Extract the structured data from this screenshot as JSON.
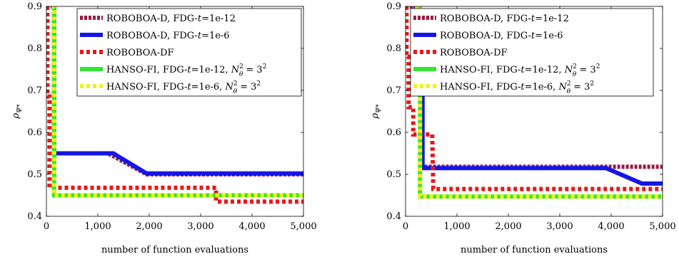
{
  "chart_data": [
    {
      "type": "line",
      "xlabel": "number of function evaluations",
      "ylabel": "ρΨ*",
      "xlim": [
        0,
        5000
      ],
      "ylim": [
        0.4,
        0.9
      ],
      "xticks": [
        "0",
        "1,000",
        "2,000",
        "3,000",
        "4,000",
        "5,000"
      ],
      "yticks": [
        "0.4",
        "0.5",
        "0.6",
        "0.7",
        "0.8",
        "0.9"
      ],
      "legend_position": "top-right",
      "series": [
        {
          "name": "ROBOBOA-D, FDG-t=1e-12",
          "color": "#9b1b4a",
          "dash": "dense-dash",
          "x": [
            0,
            150,
            150,
            1200,
            1950,
            5000
          ],
          "y": [
            0.9,
            0.9,
            0.55,
            0.55,
            0.5,
            0.5
          ]
        },
        {
          "name": "ROBOBOA-D, FDG-t=1e-6",
          "color": "#1515e6",
          "dash": "solid",
          "x": [
            100,
            150,
            150,
            1300,
            1950,
            5000
          ],
          "y": [
            0.9,
            0.9,
            0.55,
            0.55,
            0.502,
            0.502
          ]
        },
        {
          "name": "ROBOBOA-DF",
          "color": "#e61919",
          "dash": "dotted",
          "x": [
            20,
            20,
            60,
            60,
            3300,
            3300,
            5000
          ],
          "y": [
            0.9,
            0.685,
            0.685,
            0.468,
            0.468,
            0.435,
            0.435
          ]
        },
        {
          "name": "HANSO-FI, FDG-t=1e-12, N²θ = 3²",
          "color": "#33e633",
          "dash": "solid",
          "x": [
            100,
            150,
            150,
            5000
          ],
          "y": [
            0.9,
            0.9,
            0.45,
            0.45
          ]
        },
        {
          "name": "HANSO-FI, FDG-t=1e-6, N²θ = 3²",
          "color": "#f2f21a",
          "dash": "dotted",
          "x": [
            100,
            150,
            150,
            5000
          ],
          "y": [
            0.9,
            0.9,
            0.45,
            0.45
          ]
        }
      ]
    },
    {
      "type": "line",
      "xlabel": "number of function evaluations",
      "ylabel": "ρΨ*",
      "xlim": [
        0,
        5000
      ],
      "ylim": [
        0.4,
        0.9
      ],
      "xticks": [
        "0",
        "1,000",
        "2,000",
        "3,000",
        "4,000",
        "5,000"
      ],
      "yticks": [
        "0.4",
        "0.5",
        "0.6",
        "0.7",
        "0.8",
        "0.9"
      ],
      "legend_position": "top-right",
      "series": [
        {
          "name": "ROBOBOA-D, FDG-t=1e-12",
          "color": "#9b1b4a",
          "dash": "dense-dash",
          "x": [
            0,
            250,
            250,
            320,
            320,
            5000
          ],
          "y": [
            0.9,
            0.9,
            0.72,
            0.72,
            0.518,
            0.518
          ]
        },
        {
          "name": "ROBOBOA-D, FDG-t=1e-6",
          "color": "#1515e6",
          "dash": "solid",
          "x": [
            150,
            250,
            250,
            330,
            330,
            3900,
            4600,
            5000
          ],
          "y": [
            0.9,
            0.9,
            0.72,
            0.72,
            0.515,
            0.515,
            0.478,
            0.478
          ]
        },
        {
          "name": "ROBOBOA-DF",
          "color": "#e61919",
          "dash": "dotted",
          "x": [
            20,
            20,
            60,
            60,
            150,
            150,
            520,
            540,
            540,
            5000
          ],
          "y": [
            0.9,
            0.78,
            0.78,
            0.66,
            0.66,
            0.595,
            0.595,
            0.465,
            0.465,
            0.465
          ]
        },
        {
          "name": "HANSO-FI, FDG-t=1e-12, N²θ = 3²",
          "color": "#33e633",
          "dash": "solid",
          "x": [
            180,
            280,
            280,
            5000
          ],
          "y": [
            0.9,
            0.9,
            0.447,
            0.447
          ]
        },
        {
          "name": "HANSO-FI, FDG-t=1e-6, N²θ = 3²",
          "color": "#f2f21a",
          "dash": "dotted",
          "x": [
            180,
            280,
            280,
            5000
          ],
          "y": [
            0.9,
            0.9,
            0.447,
            0.447
          ]
        }
      ]
    }
  ],
  "legend_labels": [
    {
      "main": "ROBOBOA-D, FDG-",
      "ital": "t",
      "rest": "=1e-12",
      "extra": ""
    },
    {
      "main": "ROBOBOA-D, FDG-",
      "ital": "t",
      "rest": "=1e-6",
      "extra": ""
    },
    {
      "main": "ROBOBOA-DF",
      "ital": "",
      "rest": "",
      "extra": ""
    },
    {
      "main": "HANSO-FI, FDG-",
      "ital": "t",
      "rest": "=1e-12, ",
      "extra": "N"
    },
    {
      "main": "HANSO-FI, FDG-",
      "ital": "t",
      "rest": "=1e-6, ",
      "extra": "N"
    }
  ]
}
